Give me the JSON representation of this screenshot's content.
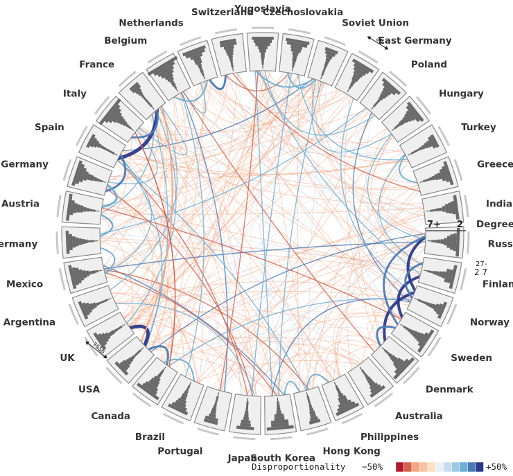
{
  "countries": [
    "Yugoslavia",
    "Czechoslovakia",
    "Soviet Union",
    "East Germany",
    "Poland",
    "Hungary",
    "Turkey",
    "Greece",
    "India",
    "Russia",
    "Finland",
    "Norway",
    "Sweden",
    "Denmark",
    "Australia",
    "Philippines",
    "Hong Kong",
    "South Korea",
    "Japan",
    "Portugal",
    "Brazil",
    "Canada",
    "USA",
    "UK",
    "Argentina",
    "Mexico",
    "Germany",
    "Austria",
    "West Germany",
    "Spain",
    "Italy",
    "France",
    "Belgium",
    "Netherlands",
    "Switzerland"
  ],
  "annotations": {
    "degree_label": "Degree",
    "degree_low": "7+",
    "degree_high": "2",
    "scale_top": "80",
    "scale_usa": "7556",
    "russia_small_top": "27-",
    "russia_small_bottom": "2 7"
  },
  "legend": {
    "title": "Disproportionality",
    "min_label": "−50%",
    "max_label": "+50%",
    "colors": [
      "#b2182b",
      "#d6604d",
      "#f4a582",
      "#f7c59f",
      "#fde0c5",
      "#e8f1f7",
      "#c6dbef",
      "#9ecae1",
      "#6baed6",
      "#4a7bb7",
      "#2b3a8c"
    ]
  }
}
